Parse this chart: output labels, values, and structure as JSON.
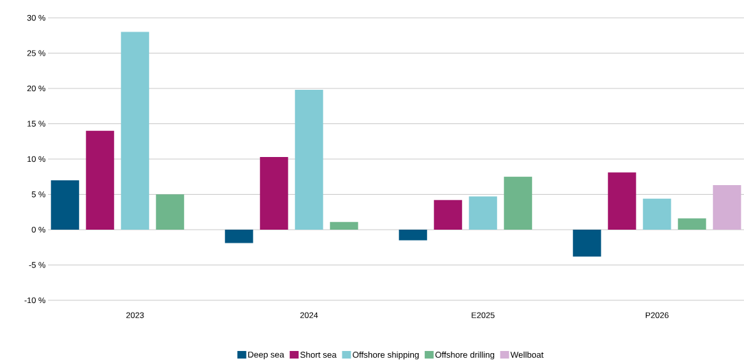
{
  "chart_data": {
    "type": "bar",
    "categories": [
      "2023",
      "2024",
      "E2025",
      "P2026"
    ],
    "series": [
      {
        "name": "Deep sea",
        "color": "#005682",
        "values": [
          7.0,
          -1.9,
          -1.5,
          -3.8
        ]
      },
      {
        "name": "Short sea",
        "color": "#a3136a",
        "values": [
          14.0,
          10.3,
          4.2,
          8.1
        ]
      },
      {
        "name": "Offshore shipping",
        "color": "#82cbd5",
        "values": [
          28.0,
          19.8,
          4.7,
          4.4
        ]
      },
      {
        "name": "Offshore drilling",
        "color": "#6fb68c",
        "values": [
          5.0,
          1.1,
          7.5,
          1.6
        ]
      },
      {
        "name": "Wellboat",
        "color": "#d4afd5",
        "values": [
          null,
          null,
          null,
          6.3
        ]
      }
    ],
    "ylim": [
      -10,
      30
    ],
    "yticks": [
      {
        "value": -10,
        "label": "-10 %"
      },
      {
        "value": -5,
        "label": "-5 %"
      },
      {
        "value": 0,
        "label": "0 %"
      },
      {
        "value": 5,
        "label": "5 %"
      },
      {
        "value": 10,
        "label": "10 %"
      },
      {
        "value": 15,
        "label": "15 %"
      },
      {
        "value": 20,
        "label": "20 %"
      },
      {
        "value": 25,
        "label": "25 %"
      },
      {
        "value": 30,
        "label": "30 %"
      }
    ],
    "grid": "y",
    "legend": "bottom"
  }
}
